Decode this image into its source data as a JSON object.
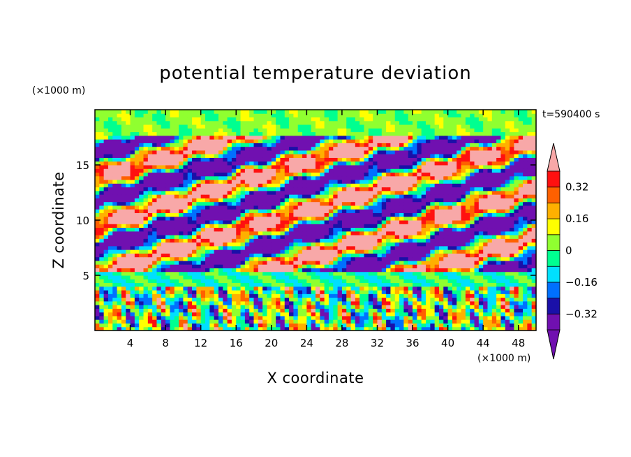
{
  "chart_data": {
    "type": "heatmap",
    "title": "potential temperature deviation",
    "xlabel": "X coordinate",
    "ylabel": "Z coordinate",
    "x_unit": "(×1000 m)",
    "y_unit": "(×1000 m)",
    "time_label": "t=590400 s",
    "xlim": [
      0,
      50
    ],
    "ylim": [
      0,
      20
    ],
    "x_ticks": [
      4,
      8,
      12,
      16,
      20,
      24,
      28,
      32,
      36,
      40,
      44,
      48
    ],
    "y_ticks": [
      5,
      10,
      15
    ],
    "colorbar": {
      "levels": [
        -0.4,
        -0.32,
        -0.24,
        -0.16,
        -0.08,
        0,
        0.08,
        0.16,
        0.24,
        0.32,
        0.4
      ],
      "labels": [
        "-0.32",
        "-0.16",
        "0",
        "0.16",
        "0.32"
      ],
      "label_values": [
        -0.32,
        -0.16,
        0,
        0.16,
        0.32
      ],
      "colors": [
        "#7010b0",
        "#1a10a8",
        "#0070ff",
        "#00e0ff",
        "#00ff90",
        "#90ff30",
        "#ffff00",
        "#ffb000",
        "#ff6000",
        "#ff1010"
      ],
      "under_color": "#7010b0",
      "over_color": "#f8a8a8"
    }
  }
}
